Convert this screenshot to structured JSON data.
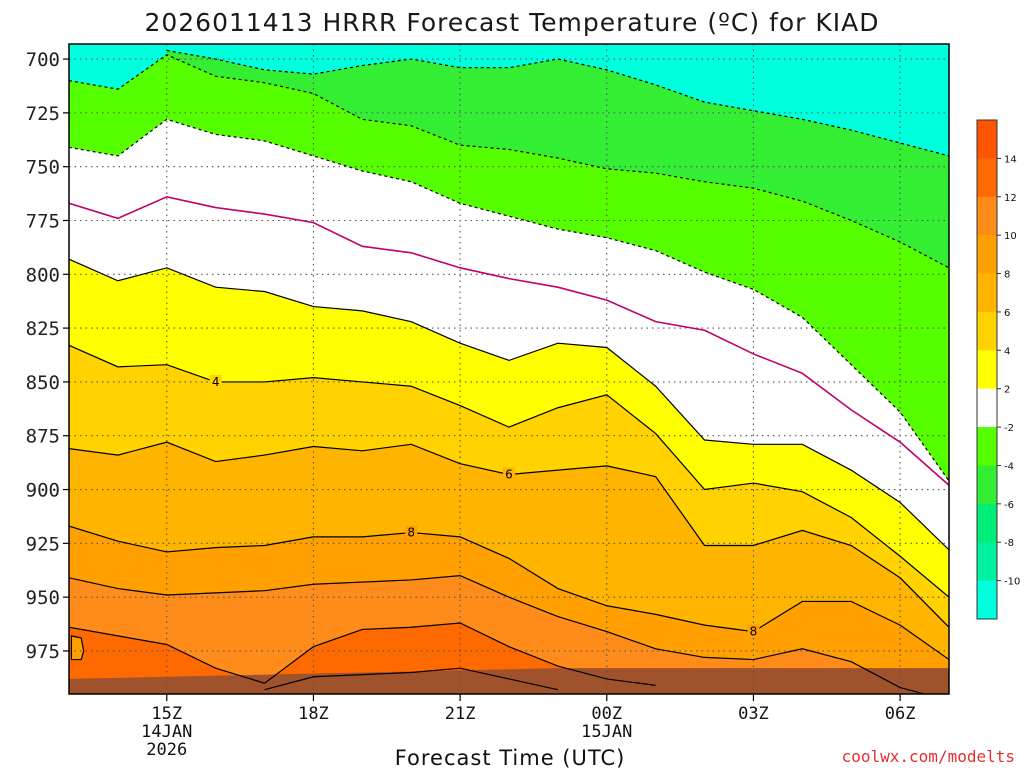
{
  "chart_data": {
    "type": "heatmap",
    "title": "2026011413 HRRR Forecast Temperature (ºC) for KIAD",
    "xlabel": "Forecast Time (UTC)",
    "ylabel": "",
    "y_ticks": [
      "700",
      "725",
      "750",
      "775",
      "800",
      "825",
      "850",
      "875",
      "900",
      "925",
      "950",
      "975"
    ],
    "x_ticks": [
      {
        "hour": 15,
        "lines": [
          "15Z",
          "14JAN",
          "2026"
        ]
      },
      {
        "hour": 18,
        "lines": [
          "18Z"
        ]
      },
      {
        "hour": 21,
        "lines": [
          "21Z"
        ]
      },
      {
        "hour": 24,
        "lines": [
          "00Z",
          "15JAN"
        ]
      },
      {
        "hour": 27,
        "lines": [
          "03Z"
        ]
      },
      {
        "hour": 30,
        "lines": [
          "06Z"
        ]
      }
    ],
    "xlim_hours": [
      13,
      31
    ],
    "ylim_hpa": [
      693,
      995
    ],
    "colorbar": {
      "ticks": [
        "14",
        "12",
        "10",
        "8",
        "6",
        "4",
        "2",
        "-2",
        "-4",
        "-6",
        "-8",
        "-10"
      ],
      "bands": [
        {
          "lo": 14,
          "hi": 16,
          "color": "#ff5500"
        },
        {
          "lo": 12,
          "hi": 14,
          "color": "#ff6a00"
        },
        {
          "lo": 10,
          "hi": 12,
          "color": "#ff8c1a"
        },
        {
          "lo": 8,
          "hi": 10,
          "color": "#ffa000"
        },
        {
          "lo": 6,
          "hi": 8,
          "color": "#ffb400"
        },
        {
          "lo": 4,
          "hi": 6,
          "color": "#ffd200"
        },
        {
          "lo": 2,
          "hi": 4,
          "color": "#ffff00"
        },
        {
          "lo": -2,
          "hi": 2,
          "color": "#ffffff"
        },
        {
          "lo": -4,
          "hi": -2,
          "color": "#55ff00"
        },
        {
          "lo": -6,
          "hi": -4,
          "color": "#33ee33"
        },
        {
          "lo": -8,
          "hi": -6,
          "color": "#00ee77"
        },
        {
          "lo": -10,
          "hi": -8,
          "color": "#00f0a0"
        },
        {
          "lo": -12,
          "hi": -10,
          "color": "#00ffdd"
        }
      ]
    },
    "contours": [
      {
        "level": -4,
        "color": "#000000",
        "dashed": true,
        "points": [
          [
            17.9,
            693
          ],
          [
            20.0,
            693
          ],
          [
            21.0,
            693
          ],
          [
            22.0,
            693
          ],
          [
            23.0,
            693
          ],
          [
            24.0,
            693
          ]
        ],
        "label": null
      },
      {
        "level": -4,
        "color": "#000000",
        "dashed": true,
        "points": [
          [
            15,
            696
          ],
          [
            16,
            700
          ],
          [
            17,
            705
          ],
          [
            18,
            707
          ],
          [
            19,
            703
          ],
          [
            20,
            700
          ],
          [
            21,
            704
          ],
          [
            22,
            704
          ],
          [
            23,
            700
          ],
          [
            24,
            705
          ],
          [
            25,
            712
          ],
          [
            26,
            720
          ],
          [
            27,
            724
          ],
          [
            28,
            728
          ],
          [
            29,
            733
          ],
          [
            30,
            739
          ],
          [
            31,
            745
          ]
        ],
        "label": null
      },
      {
        "level": -2,
        "color": "#000000",
        "dashed": true,
        "points": [
          [
            13,
            710
          ],
          [
            14,
            714
          ],
          [
            15,
            698
          ],
          [
            16,
            708
          ],
          [
            17,
            711
          ],
          [
            18,
            716
          ],
          [
            19,
            728
          ],
          [
            20,
            731
          ],
          [
            21,
            740
          ],
          [
            22,
            742
          ],
          [
            23,
            746
          ],
          [
            24,
            751
          ],
          [
            25,
            753
          ],
          [
            26,
            757
          ],
          [
            27,
            760
          ],
          [
            28,
            766
          ],
          [
            29,
            775
          ],
          [
            30,
            785
          ],
          [
            31,
            797
          ]
        ],
        "label": null
      },
      {
        "level": -2,
        "color": "#000000",
        "dashed": true,
        "points": [
          [
            13,
            741
          ],
          [
            14,
            745
          ],
          [
            15,
            728
          ],
          [
            16,
            735
          ],
          [
            17,
            738
          ],
          [
            18,
            745
          ],
          [
            19,
            752
          ],
          [
            20,
            757
          ],
          [
            21,
            767
          ],
          [
            22,
            773
          ],
          [
            23,
            779
          ],
          [
            24,
            783
          ],
          [
            25,
            789
          ],
          [
            26,
            799
          ],
          [
            27,
            807
          ],
          [
            28,
            820
          ],
          [
            29,
            842
          ],
          [
            30,
            864
          ],
          [
            31,
            896
          ]
        ],
        "label": null
      },
      {
        "level": 0,
        "color": "#c0006b",
        "dashed": false,
        "points": [
          [
            13,
            767
          ],
          [
            14,
            774
          ],
          [
            15,
            764
          ],
          [
            16,
            769
          ],
          [
            17,
            772
          ],
          [
            18,
            776
          ],
          [
            19,
            787
          ],
          [
            20,
            790
          ],
          [
            21,
            797
          ],
          [
            22,
            802
          ],
          [
            23,
            806
          ],
          [
            24,
            812
          ],
          [
            25,
            822
          ],
          [
            26,
            826
          ],
          [
            27,
            837
          ],
          [
            28,
            846
          ],
          [
            29,
            863
          ],
          [
            30,
            878
          ],
          [
            31,
            898
          ]
        ],
        "label": null
      },
      {
        "level": 2,
        "color": "#000000",
        "dashed": false,
        "points": [
          [
            13,
            793
          ],
          [
            14,
            803
          ],
          [
            15,
            797
          ],
          [
            16,
            806
          ],
          [
            17,
            808
          ],
          [
            18,
            815
          ],
          [
            19,
            817
          ],
          [
            20,
            822
          ],
          [
            21,
            832
          ],
          [
            22,
            840
          ],
          [
            23,
            832
          ],
          [
            24,
            834
          ],
          [
            25,
            852
          ],
          [
            26,
            877
          ],
          [
            27,
            879
          ],
          [
            28,
            879
          ],
          [
            29,
            891
          ],
          [
            30,
            906
          ],
          [
            31,
            928
          ]
        ],
        "label": null
      },
      {
        "level": 4,
        "color": "#000000",
        "dashed": false,
        "points": [
          [
            13,
            833
          ],
          [
            14,
            843
          ],
          [
            15,
            842
          ],
          [
            16,
            850
          ],
          [
            17,
            850
          ],
          [
            18,
            848
          ],
          [
            19,
            850
          ],
          [
            20,
            852
          ],
          [
            21,
            861
          ],
          [
            22,
            871
          ],
          [
            23,
            862
          ],
          [
            24,
            856
          ],
          [
            25,
            874
          ],
          [
            26,
            900
          ],
          [
            27,
            897
          ],
          [
            28,
            901
          ],
          [
            29,
            913
          ],
          [
            30,
            931
          ],
          [
            31,
            950
          ]
        ],
        "label": {
          "x": 16.0,
          "y": 850,
          "text": "4"
        }
      },
      {
        "level": 6,
        "color": "#000000",
        "dashed": false,
        "points": [
          [
            13,
            881
          ],
          [
            14,
            884
          ],
          [
            15,
            878
          ],
          [
            16,
            887
          ],
          [
            17,
            884
          ],
          [
            18,
            880
          ],
          [
            19,
            882
          ],
          [
            20,
            879
          ],
          [
            21,
            888
          ],
          [
            22,
            893
          ],
          [
            23,
            891
          ],
          [
            24,
            889
          ],
          [
            25,
            894
          ],
          [
            26,
            926
          ],
          [
            27,
            926
          ],
          [
            28,
            919
          ],
          [
            29,
            926
          ],
          [
            30,
            941
          ],
          [
            31,
            964
          ]
        ],
        "label": {
          "x": 22.0,
          "y": 893,
          "text": "6"
        }
      },
      {
        "level": 8,
        "color": "#000000",
        "dashed": false,
        "points": [
          [
            13,
            917
          ],
          [
            14,
            924
          ],
          [
            15,
            929
          ],
          [
            16,
            927
          ],
          [
            17,
            926
          ],
          [
            18,
            922
          ],
          [
            19,
            922
          ],
          [
            20,
            920
          ],
          [
            21,
            922
          ],
          [
            22,
            932
          ],
          [
            23,
            946
          ],
          [
            24,
            954
          ],
          [
            25,
            958
          ],
          [
            26,
            963
          ],
          [
            27,
            966
          ],
          [
            28,
            952
          ],
          [
            29,
            952
          ],
          [
            30,
            963
          ],
          [
            31,
            979
          ]
        ],
        "label": {
          "x": 20.0,
          "y": 920,
          "text": "8"
        }
      },
      {
        "level": 8,
        "color": "#000000",
        "dashed": false,
        "points": [],
        "label": {
          "x": 27.0,
          "y": 966,
          "text": "8"
        }
      },
      {
        "level": 10,
        "color": "#000000",
        "dashed": false,
        "points": [
          [
            13,
            941
          ],
          [
            14,
            946
          ],
          [
            15,
            949
          ],
          [
            16,
            948
          ],
          [
            17,
            947
          ],
          [
            18,
            944
          ],
          [
            19,
            943
          ],
          [
            20,
            942
          ],
          [
            21,
            940
          ],
          [
            22,
            950
          ],
          [
            23,
            959
          ],
          [
            24,
            966
          ],
          [
            25,
            974
          ],
          [
            26,
            978
          ],
          [
            27,
            979
          ],
          [
            28,
            974
          ],
          [
            29,
            980
          ],
          [
            30,
            992
          ],
          [
            31,
            998
          ]
        ],
        "label": null
      },
      {
        "level": 12,
        "color": "#000000",
        "dashed": false,
        "points": [
          [
            13,
            964
          ],
          [
            14,
            968
          ],
          [
            15,
            972
          ],
          [
            16,
            983
          ],
          [
            17,
            990
          ],
          [
            18,
            973
          ],
          [
            19,
            965
          ],
          [
            20,
            964
          ],
          [
            21,
            962
          ],
          [
            22,
            973
          ],
          [
            23,
            982
          ],
          [
            24,
            988
          ],
          [
            25,
            991
          ]
        ],
        "label": null
      },
      {
        "level": 14,
        "color": "#000000",
        "dashed": false,
        "points": [
          [
            17,
            993
          ],
          [
            18,
            987
          ],
          [
            19,
            986
          ],
          [
            20,
            985
          ],
          [
            21,
            983
          ],
          [
            22,
            988
          ],
          [
            23,
            993
          ]
        ],
        "label": null
      },
      {
        "level": 12,
        "color": "#000000",
        "dashed": false,
        "points": [
          [
            13.05,
            968
          ],
          [
            13.25,
            969
          ],
          [
            13.3,
            975
          ],
          [
            13.25,
            979
          ],
          [
            13.05,
            979
          ]
        ],
        "label": null
      }
    ],
    "ground": {
      "color": "#a0522d",
      "top_hpa": [
        [
          13,
          988
        ],
        [
          15,
          987
        ],
        [
          17,
          986
        ],
        [
          19,
          985
        ],
        [
          21,
          984
        ],
        [
          23,
          983
        ],
        [
          24,
          983
        ],
        [
          25,
          983
        ],
        [
          27,
          983
        ],
        [
          29,
          983
        ],
        [
          31,
          983
        ]
      ]
    }
  },
  "credit": "coolwx.com/modelts"
}
